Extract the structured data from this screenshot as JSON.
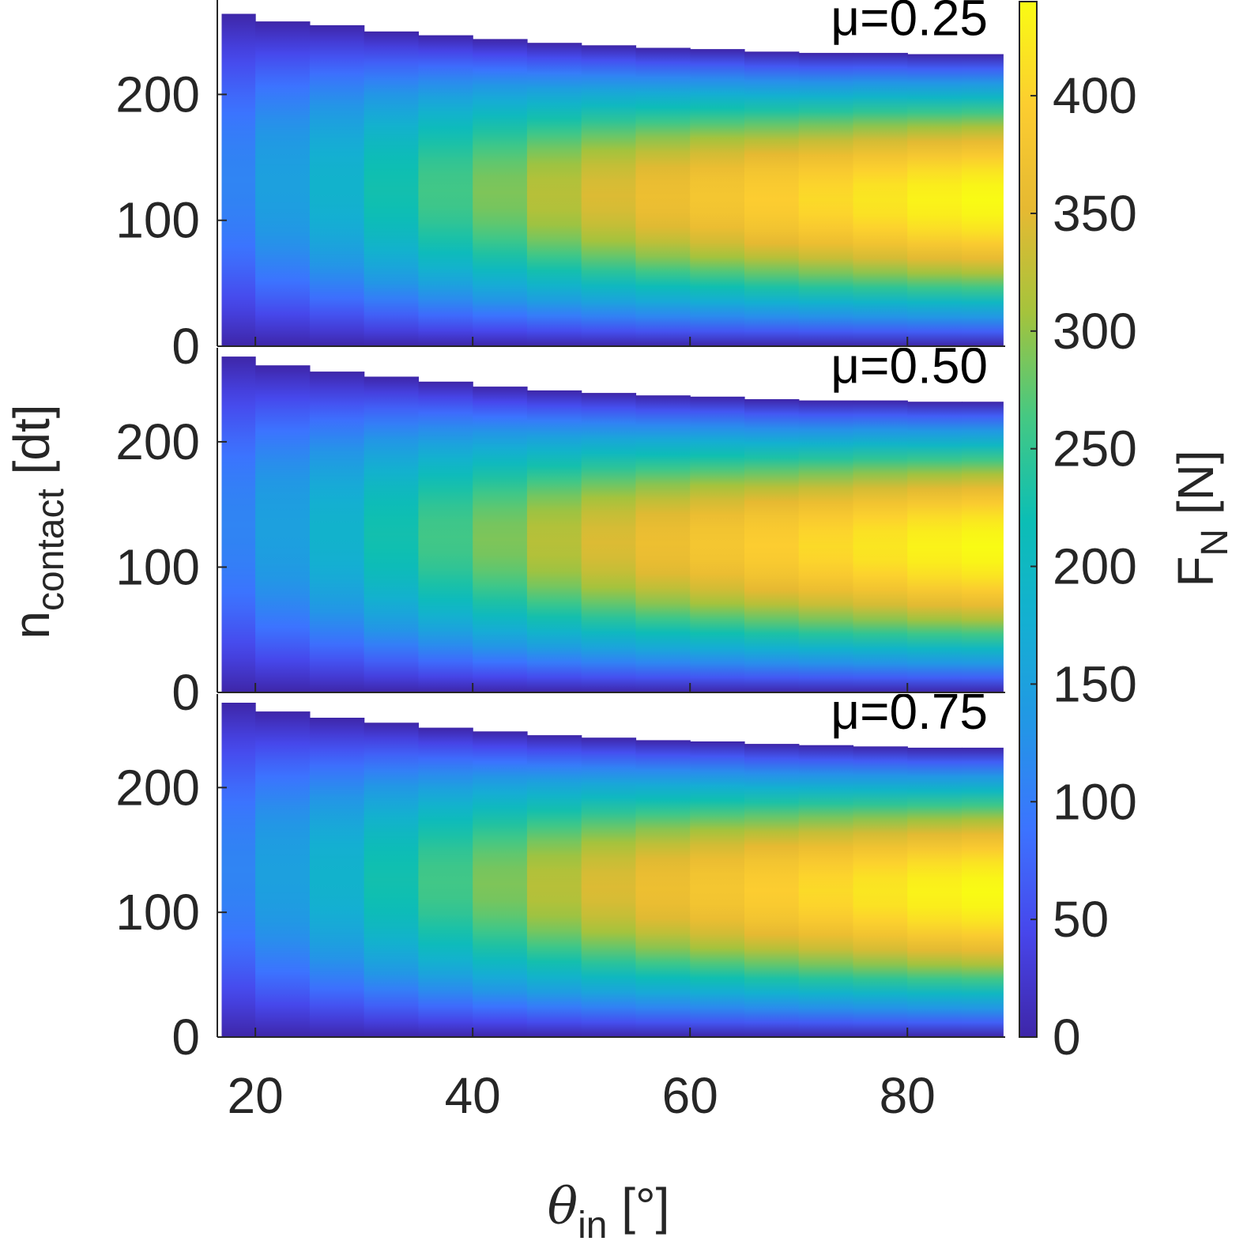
{
  "chart_data": {
    "type": "heatmap",
    "colormap": "parula",
    "panels": [
      {
        "annotation": "μ=0.25",
        "theta_in": [
          17.5,
          22.5,
          27.5,
          32.5,
          37.5,
          42.5,
          47.5,
          52.5,
          57.5,
          62.5,
          67.5,
          72.5,
          77.5,
          82.5,
          87.5
        ],
        "n_max": [
          264,
          258,
          255,
          250,
          247,
          244,
          241,
          239,
          237,
          236,
          234,
          233,
          233,
          232,
          232
        ],
        "peak_force": [
          110,
          150,
          185,
          225,
          260,
          290,
          320,
          345,
          365,
          380,
          395,
          408,
          420,
          432,
          440
        ]
      },
      {
        "annotation": "μ=0.50",
        "theta_in": [
          17.5,
          22.5,
          27.5,
          32.5,
          37.5,
          42.5,
          47.5,
          52.5,
          57.5,
          62.5,
          67.5,
          72.5,
          77.5,
          82.5,
          87.5
        ],
        "n_max": [
          268,
          261,
          256,
          252,
          248,
          244,
          241,
          239,
          237,
          236,
          234,
          233,
          233,
          232,
          232
        ],
        "peak_force": [
          110,
          150,
          185,
          225,
          260,
          290,
          320,
          345,
          365,
          380,
          395,
          408,
          420,
          432,
          440
        ]
      },
      {
        "annotation": "μ=0.75",
        "theta_in": [
          17.5,
          22.5,
          27.5,
          32.5,
          37.5,
          42.5,
          47.5,
          52.5,
          57.5,
          62.5,
          67.5,
          72.5,
          77.5,
          82.5,
          87.5
        ],
        "n_max": [
          268,
          261,
          256,
          252,
          248,
          245,
          242,
          240,
          238,
          237,
          235,
          234,
          233,
          232,
          232
        ],
        "peak_force": [
          110,
          150,
          185,
          225,
          260,
          290,
          320,
          345,
          365,
          380,
          395,
          408,
          420,
          432,
          440
        ]
      }
    ],
    "xlabel": "θin [°]",
    "ylabel": "ncontact [dt]",
    "colorbar_label": "FN [N]",
    "xlim": [
      16.5,
      89
    ],
    "ylim": [
      0,
      275
    ],
    "xticks": [
      20,
      40,
      60,
      80
    ],
    "yticks": [
      0,
      100,
      200
    ],
    "colorbar_lim": [
      0,
      440
    ],
    "colorbar_ticks": [
      0,
      50,
      100,
      150,
      200,
      250,
      300,
      350,
      400
    ],
    "grid": false
  },
  "labels": {
    "xlabel_main": "θ",
    "xlabel_sub": "in",
    "xlabel_unit": " [°]",
    "ylabel_main": "n",
    "ylabel_sub": "contact",
    "ylabel_unit": " [dt]",
    "cbar_main": "F",
    "cbar_sub": "N",
    "cbar_unit": " [N]"
  }
}
